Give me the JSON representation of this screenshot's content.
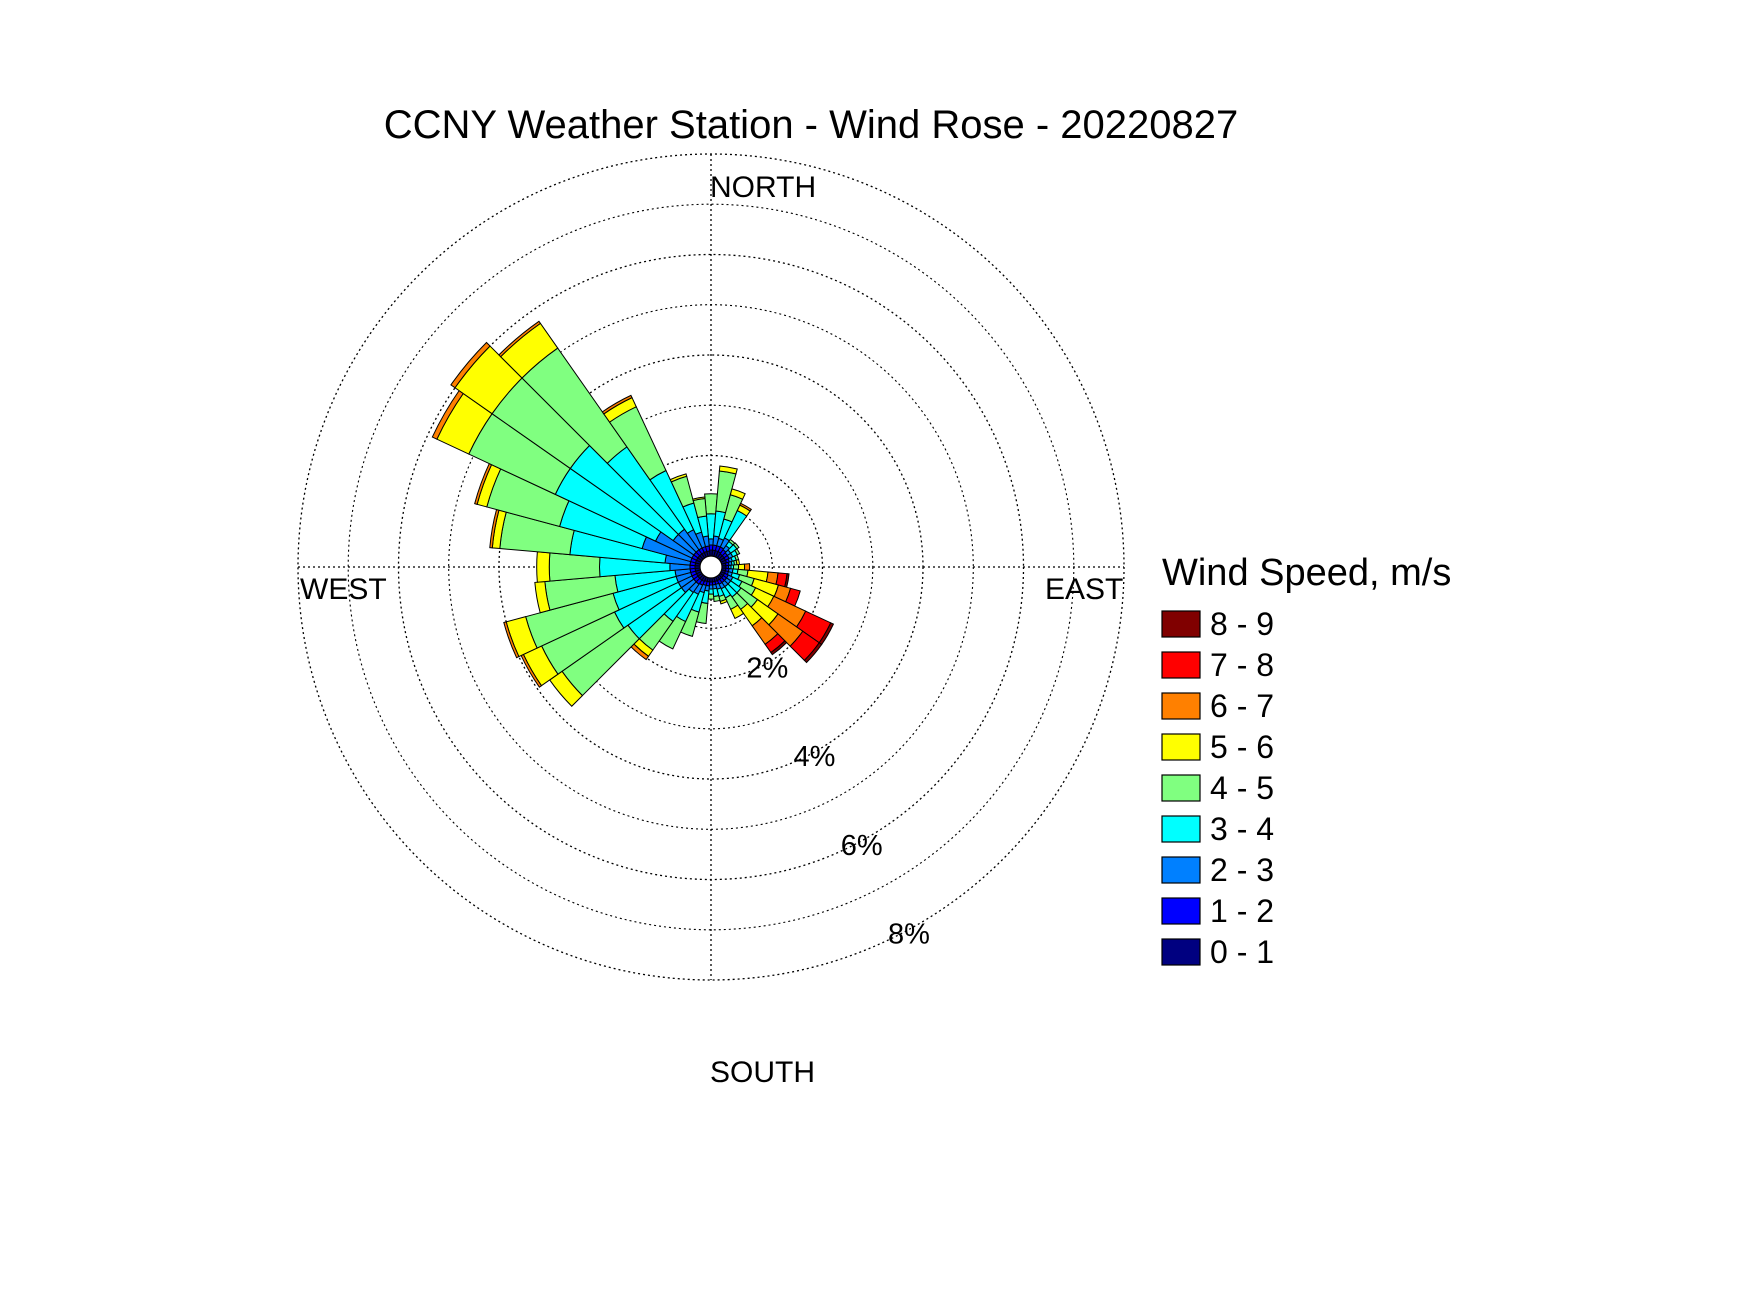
{
  "chart_data": {
    "type": "wind-rose",
    "title": "CCNY Weather Station - Wind Rose - 20220827",
    "directions": {
      "north": "NORTH",
      "east": "EAST",
      "south": "SOUTH",
      "west": "WEST"
    },
    "radial_max_percent": 8,
    "radial_ticks": [
      {
        "value": 2,
        "label": "2%"
      },
      {
        "value": 4,
        "label": "4%"
      },
      {
        "value": 6,
        "label": "6%"
      },
      {
        "value": 8,
        "label": "8%"
      }
    ],
    "sector_width_deg": 10,
    "legend": {
      "title": "Wind Speed, m/s",
      "bins": [
        {
          "label": "8 - 9",
          "color": "#800000"
        },
        {
          "label": "7 - 8",
          "color": "#ff0000"
        },
        {
          "label": "6 - 7",
          "color": "#ff8000"
        },
        {
          "label": "5 - 6",
          "color": "#ffff00"
        },
        {
          "label": "4 - 5",
          "color": "#80ff80"
        },
        {
          "label": "3 - 4",
          "color": "#00ffff"
        },
        {
          "label": "2 - 3",
          "color": "#0080ff"
        },
        {
          "label": "1 - 2",
          "color": "#0000ff"
        },
        {
          "label": "0 - 1",
          "color": "#000080"
        }
      ]
    },
    "bin_order_inner_to_outer": [
      "0 - 1",
      "1 - 2",
      "2 - 3",
      "3 - 4",
      "4 - 5",
      "5 - 6",
      "6 - 7",
      "7 - 8",
      "8 - 9"
    ],
    "sectors": [
      {
        "direction_deg": 0,
        "values": [
          0.12,
          0.1,
          0.12,
          0.5,
          0.4,
          0,
          0,
          0,
          0
        ]
      },
      {
        "direction_deg": 10,
        "values": [
          0.12,
          0.1,
          0.18,
          0.5,
          0.8,
          0.1,
          0,
          0,
          0
        ]
      },
      {
        "direction_deg": 20,
        "values": [
          0.12,
          0.1,
          0.15,
          0.4,
          0.5,
          0.12,
          0,
          0,
          0
        ]
      },
      {
        "direction_deg": 30,
        "values": [
          0.12,
          0.1,
          0.2,
          0.6,
          0,
          0.12,
          0.04,
          0,
          0
        ]
      },
      {
        "direction_deg": 40,
        "values": [
          0.1,
          0.1,
          0.1,
          0.1,
          0.05,
          0,
          0,
          0,
          0
        ]
      },
      {
        "direction_deg": 50,
        "values": [
          0.1,
          0.08,
          0.08,
          0.15,
          0.05,
          0,
          0,
          0,
          0
        ]
      },
      {
        "direction_deg": 60,
        "values": [
          0.1,
          0.08,
          0.08,
          0.1,
          0.05,
          0,
          0,
          0,
          0
        ]
      },
      {
        "direction_deg": 70,
        "values": [
          0.1,
          0.06,
          0.06,
          0.08,
          0.05,
          0,
          0,
          0,
          0
        ]
      },
      {
        "direction_deg": 80,
        "values": [
          0.08,
          0.06,
          0.06,
          0.05,
          0.05,
          0.05,
          0,
          0,
          0
        ]
      },
      {
        "direction_deg": 90,
        "values": [
          0.08,
          0.05,
          0.05,
          0.05,
          0.1,
          0.12,
          0.1,
          0,
          0
        ]
      },
      {
        "direction_deg": 100,
        "values": [
          0.08,
          0.06,
          0.08,
          0.1,
          0.2,
          0.4,
          0.2,
          0.18,
          0.04
        ]
      },
      {
        "direction_deg": 110,
        "values": [
          0.08,
          0.06,
          0.08,
          0.15,
          0.3,
          0.5,
          0.25,
          0.2,
          0
        ]
      },
      {
        "direction_deg": 120,
        "values": [
          0.08,
          0.08,
          0.1,
          0.2,
          0.3,
          0.4,
          0.7,
          0.55,
          0.06
        ]
      },
      {
        "direction_deg": 130,
        "values": [
          0.08,
          0.08,
          0.1,
          0.25,
          0.4,
          0.5,
          0.6,
          0.4,
          0.06
        ]
      },
      {
        "direction_deg": 140,
        "values": [
          0.08,
          0.08,
          0.1,
          0.25,
          0.3,
          0.4,
          0.45,
          0.2,
          0.05
        ]
      },
      {
        "direction_deg": 150,
        "values": [
          0.08,
          0.08,
          0.1,
          0.2,
          0.25,
          0.2,
          0,
          0,
          0
        ]
      },
      {
        "direction_deg": 160,
        "values": [
          0.08,
          0.06,
          0.1,
          0.15,
          0.1,
          0.05,
          0,
          0,
          0
        ]
      },
      {
        "direction_deg": 170,
        "values": [
          0.08,
          0.06,
          0.08,
          0.15,
          0.1,
          0,
          0,
          0,
          0
        ]
      },
      {
        "direction_deg": 180,
        "values": [
          0.08,
          0.06,
          0.08,
          0.1,
          0.1,
          0,
          0,
          0,
          0
        ]
      },
      {
        "direction_deg": 190,
        "values": [
          0.08,
          0.08,
          0.1,
          0.25,
          0.4,
          0,
          0,
          0,
          0
        ]
      },
      {
        "direction_deg": 200,
        "values": [
          0.08,
          0.08,
          0.15,
          0.4,
          0.5,
          0,
          0,
          0,
          0
        ]
      },
      {
        "direction_deg": 210,
        "values": [
          0.1,
          0.08,
          0.2,
          0.6,
          0.6,
          0,
          0,
          0,
          0
        ]
      },
      {
        "direction_deg": 220,
        "values": [
          0.1,
          0.1,
          0.2,
          0.7,
          0.7,
          0.15,
          0.08,
          0,
          0
        ]
      },
      {
        "direction_deg": 230,
        "values": [
          0.1,
          0.1,
          0.3,
          1.3,
          1.6,
          0.3,
          0,
          0,
          0
        ]
      },
      {
        "direction_deg": 240,
        "values": [
          0.1,
          0.1,
          0.3,
          1.4,
          1.6,
          0.4,
          0.05,
          0,
          0
        ]
      },
      {
        "direction_deg": 250,
        "values": [
          0.1,
          0.1,
          0.3,
          1.3,
          1.8,
          0.4,
          0.05,
          0,
          0
        ]
      },
      {
        "direction_deg": 260,
        "values": [
          0.1,
          0.1,
          0.3,
          1.2,
          1.4,
          0.2,
          0,
          0,
          0
        ]
      },
      {
        "direction_deg": 270,
        "values": [
          0.1,
          0.1,
          0.4,
          1.4,
          1.0,
          0.25,
          0,
          0,
          0
        ]
      },
      {
        "direction_deg": 280,
        "values": [
          0.1,
          0.1,
          0.5,
          1.9,
          1.4,
          0.15,
          0.05,
          0,
          0
        ]
      },
      {
        "direction_deg": 290,
        "values": [
          0.1,
          0.1,
          1.0,
          1.7,
          1.5,
          0.2,
          0.05,
          0,
          0
        ]
      },
      {
        "direction_deg": 300,
        "values": [
          0.1,
          0.1,
          0.8,
          2.2,
          1.9,
          0.7,
          0.1,
          0,
          0
        ]
      },
      {
        "direction_deg": 310,
        "values": [
          0.1,
          0.1,
          0.5,
          2.5,
          1.9,
          0.9,
          0.1,
          0,
          0
        ]
      },
      {
        "direction_deg": 320,
        "values": [
          0.1,
          0.1,
          0.5,
          2.0,
          2.4,
          0.6,
          0.05,
          0,
          0
        ]
      },
      {
        "direction_deg": 330,
        "values": [
          0.1,
          0.1,
          0.4,
          1.3,
          1.4,
          0.2,
          0.05,
          0,
          0
        ]
      },
      {
        "direction_deg": 340,
        "values": [
          0.1,
          0.1,
          0.3,
          0.6,
          0.55,
          0.05,
          0,
          0,
          0
        ]
      },
      {
        "direction_deg": 350,
        "values": [
          0.1,
          0.1,
          0.2,
          0.4,
          0.35,
          0.03,
          0,
          0,
          0
        ]
      }
    ]
  }
}
